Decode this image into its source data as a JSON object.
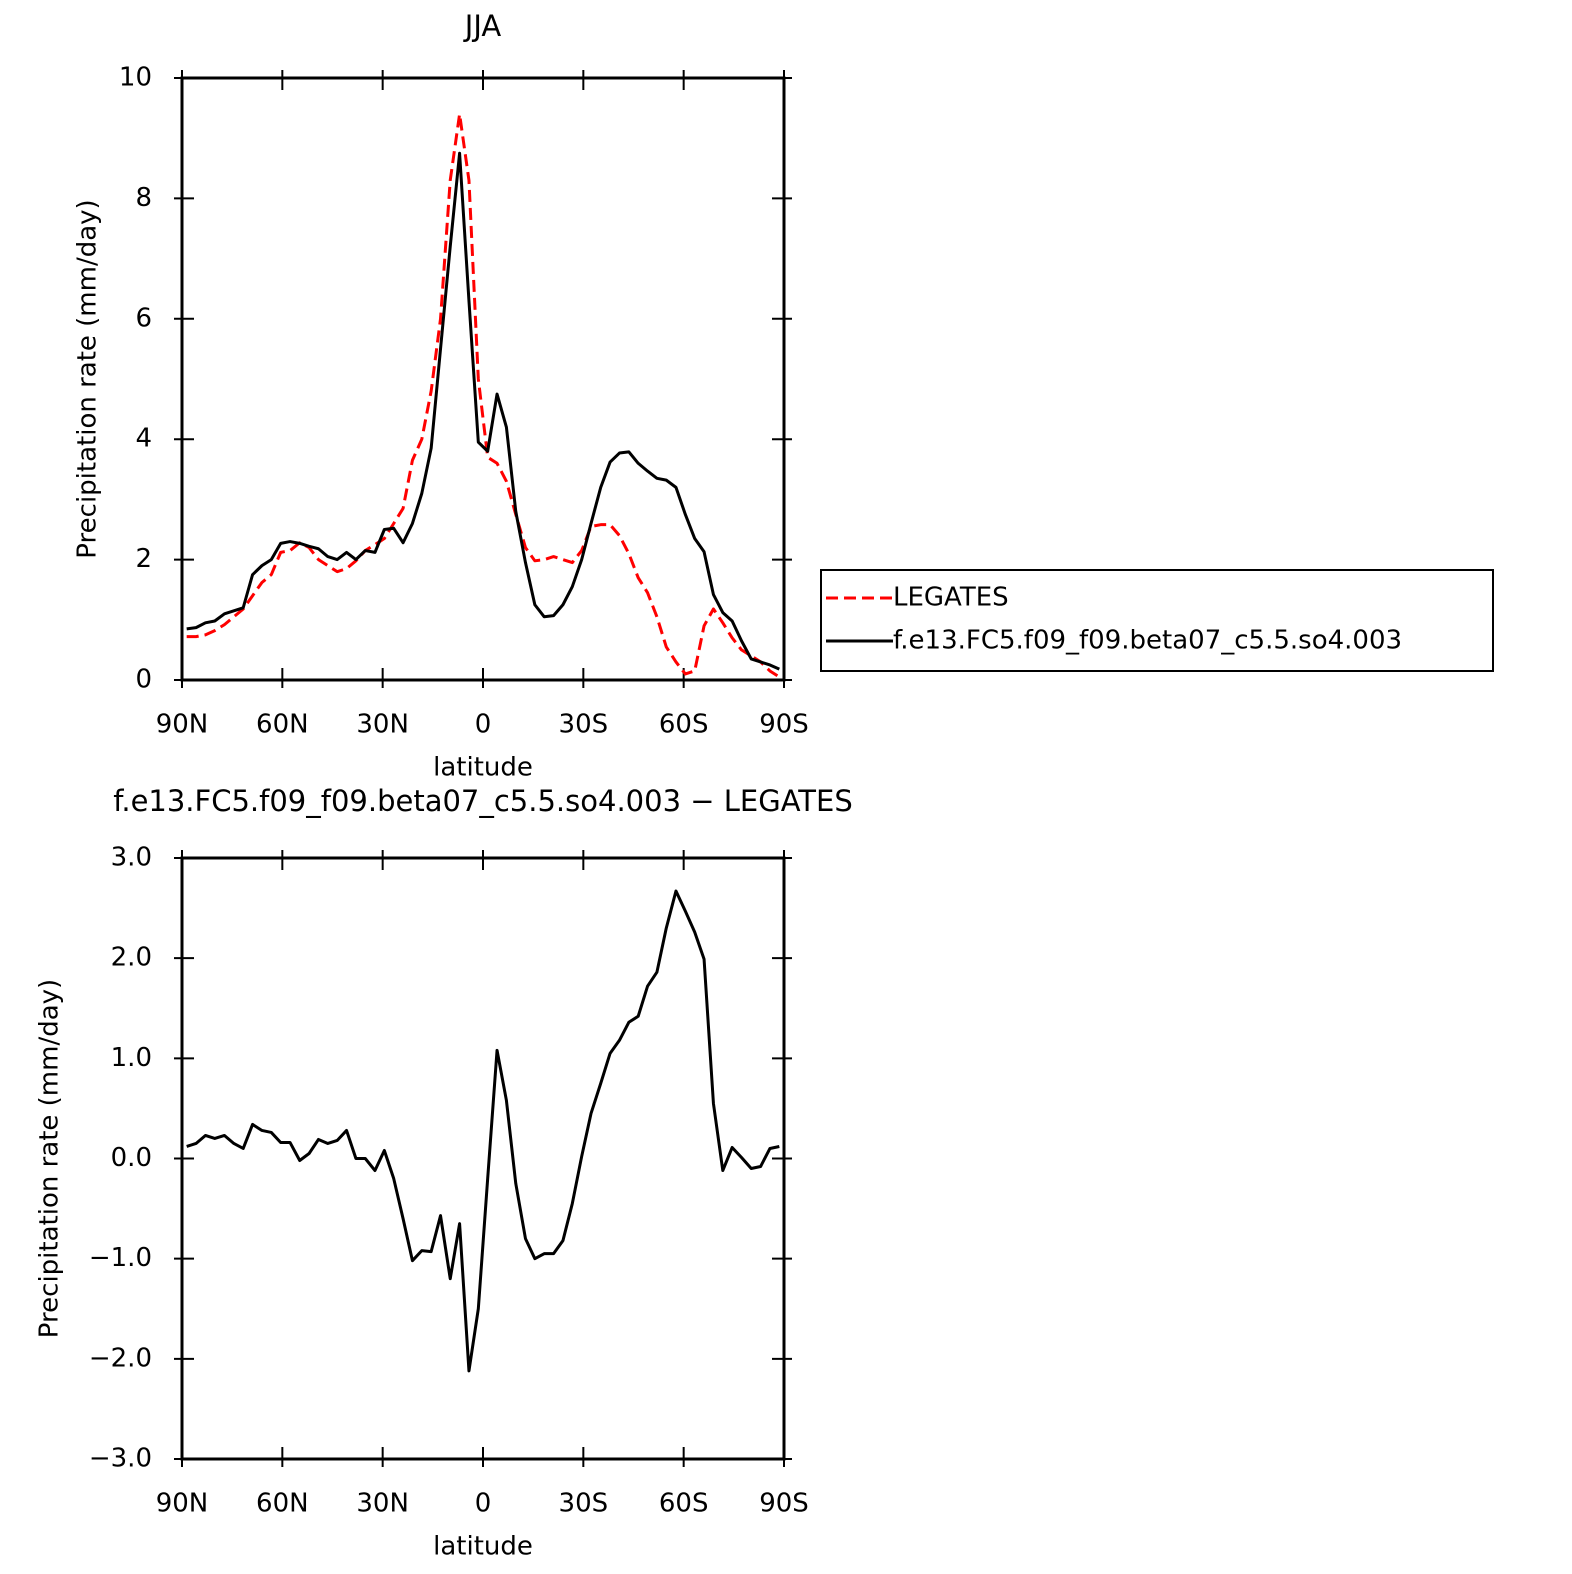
{
  "chart_data": [
    {
      "type": "line",
      "title": "JJA",
      "xlabel": "latitude",
      "ylabel": "Precipitation rate (mm/day)",
      "x": [
        88.6,
        85.8,
        83.0,
        80.2,
        77.3,
        74.5,
        71.7,
        68.9,
        66.1,
        63.3,
        60.5,
        57.7,
        54.8,
        52.0,
        49.2,
        46.4,
        43.6,
        40.8,
        38.0,
        35.2,
        32.3,
        29.5,
        26.7,
        23.9,
        21.1,
        18.3,
        15.5,
        12.7,
        9.8,
        7.0,
        4.2,
        1.4,
        -1.4,
        -4.2,
        -7.0,
        -9.8,
        -12.7,
        -15.5,
        -18.3,
        -21.1,
        -23.9,
        -26.7,
        -29.5,
        -32.3,
        -35.2,
        -38.0,
        -40.8,
        -43.6,
        -46.4,
        -49.2,
        -52.0,
        -54.8,
        -57.7,
        -60.5,
        -63.3,
        -66.1,
        -68.9,
        -71.7,
        -74.5,
        -77.3,
        -80.2,
        -83.0,
        -85.8,
        -88.6
      ],
      "series": [
        {
          "name": "LEGATES",
          "color": "#ff0000",
          "style": "dashed",
          "values": [
            0.72,
            0.72,
            0.75,
            0.82,
            0.92,
            1.05,
            1.18,
            1.4,
            1.62,
            1.75,
            2.12,
            2.15,
            2.28,
            2.2,
            2.0,
            1.9,
            1.8,
            1.85,
            1.98,
            2.15,
            2.25,
            2.35,
            2.6,
            2.85,
            3.65,
            4.0,
            4.8,
            6.0,
            8.3,
            9.4,
            8.3,
            5.0,
            3.7,
            3.6,
            3.3,
            2.75,
            2.2,
            1.98,
            2.0,
            2.05,
            2.0,
            1.95,
            2.15,
            2.55,
            2.58,
            2.58,
            2.4,
            2.1,
            1.7,
            1.45,
            1.05,
            0.55,
            0.3,
            0.1,
            0.15,
            0.9,
            1.18,
            0.95,
            0.7,
            0.5,
            0.4,
            0.3,
            0.15,
            0.05
          ]
        },
        {
          "name": "f.e13.FC5.f09_f09.beta07_c5.5.so4.003",
          "color": "#000000",
          "style": "solid",
          "values": [
            0.85,
            0.87,
            0.95,
            0.98,
            1.1,
            1.15,
            1.2,
            1.75,
            1.9,
            2.0,
            2.27,
            2.3,
            2.27,
            2.22,
            2.18,
            2.05,
            2.0,
            2.12,
            2.0,
            2.15,
            2.12,
            2.5,
            2.52,
            2.28,
            2.6,
            3.1,
            3.85,
            5.5,
            7.2,
            8.75,
            6.3,
            3.95,
            3.8,
            4.75,
            4.2,
            2.8,
            1.95,
            1.25,
            1.05,
            1.07,
            1.25,
            1.55,
            2.0,
            2.6,
            3.2,
            3.62,
            3.77,
            3.79,
            3.6,
            3.47,
            3.35,
            3.32,
            3.2,
            2.75,
            2.35,
            2.13,
            1.42,
            1.12,
            0.98,
            0.65,
            0.35,
            0.3,
            0.25,
            0.18
          ]
        }
      ],
      "xlim": [
        90,
        -90
      ],
      "xticks": [
        {
          "value": 90,
          "label": "90N"
        },
        {
          "value": 60,
          "label": "60N"
        },
        {
          "value": 30,
          "label": "30N"
        },
        0,
        {
          "value": -30,
          "label": "30S"
        },
        {
          "value": -60,
          "label": "60S"
        },
        {
          "value": -90,
          "label": "90S"
        }
      ],
      "ylim": [
        0,
        10
      ],
      "yticks": [
        0,
        2,
        4,
        6,
        8,
        10
      ],
      "legend": "right"
    },
    {
      "type": "line",
      "title": "f.e13.FC5.f09_f09.beta07_c5.5.so4.003 − LEGATES",
      "xlabel": "latitude",
      "ylabel": "Precipitation rate (mm/day)",
      "x": [
        88.6,
        85.8,
        83.0,
        80.2,
        77.3,
        74.5,
        71.7,
        68.9,
        66.1,
        63.3,
        60.5,
        57.7,
        54.8,
        52.0,
        49.2,
        46.4,
        43.6,
        40.8,
        38.0,
        35.2,
        32.3,
        29.5,
        26.7,
        23.9,
        21.1,
        18.3,
        15.5,
        12.7,
        9.8,
        7.0,
        4.2,
        1.4,
        -1.4,
        -4.2,
        -7.0,
        -9.8,
        -12.7,
        -15.5,
        -18.3,
        -21.1,
        -23.9,
        -26.7,
        -29.5,
        -32.3,
        -35.2,
        -38.0,
        -40.8,
        -43.6,
        -46.4,
        -49.2,
        -52.0,
        -54.8,
        -57.7,
        -60.5,
        -63.3,
        -66.1,
        -68.9,
        -71.7,
        -74.5,
        -77.3,
        -80.2,
        -83.0,
        -85.8,
        -88.6
      ],
      "series": [
        {
          "color": "#000000",
          "style": "solid",
          "values": [
            0.12,
            0.15,
            0.23,
            0.2,
            0.23,
            0.15,
            0.1,
            0.34,
            0.28,
            0.26,
            0.16,
            0.16,
            -0.02,
            0.05,
            0.19,
            0.15,
            0.18,
            0.28,
            0.0,
            0.0,
            -0.12,
            0.08,
            -0.2,
            -0.6,
            -1.02,
            -0.92,
            -0.93,
            -0.57,
            -1.2,
            -0.65,
            -2.12,
            -1.5,
            -0.2,
            1.08,
            0.58,
            -0.25,
            -0.8,
            -1.0,
            -0.95,
            -0.95,
            -0.82,
            -0.45,
            0.02,
            0.45,
            0.75,
            1.05,
            1.18,
            1.36,
            1.42,
            1.72,
            1.86,
            2.3,
            2.67,
            2.47,
            2.26,
            1.99,
            0.55,
            -0.12,
            0.11,
            0.01,
            -0.1,
            -0.08,
            0.1,
            0.12
          ]
        }
      ],
      "xlim": [
        90,
        -90
      ],
      "xticks": [
        {
          "value": 90,
          "label": "90N"
        },
        {
          "value": 60,
          "label": "60N"
        },
        {
          "value": 30,
          "label": "30N"
        },
        0,
        {
          "value": -30,
          "label": "30S"
        },
        {
          "value": -60,
          "label": "60S"
        },
        {
          "value": -90,
          "label": "90S"
        }
      ],
      "ylim": [
        -3,
        3
      ],
      "yticks": [
        {
          "value": -3,
          "label": "−3.0"
        },
        {
          "value": -2,
          "label": "−2.0"
        },
        {
          "value": -1,
          "label": "−1.0"
        },
        {
          "value": 0,
          "label": "0.0"
        },
        {
          "value": 1,
          "label": "1.0"
        },
        {
          "value": 2,
          "label": "2.0"
        },
        {
          "value": 3,
          "label": "3.0"
        }
      ]
    }
  ]
}
